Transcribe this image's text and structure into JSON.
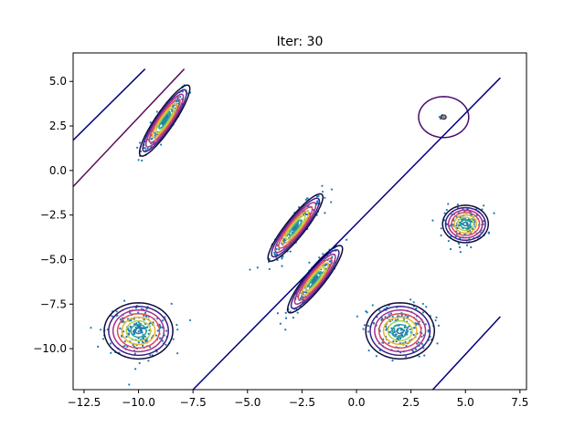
{
  "chart_data": {
    "type": "scatter",
    "title": "Iter: 30",
    "xlabel": "",
    "ylabel": "",
    "xlim": [
      -13.0,
      7.8
    ],
    "ylim": [
      -12.3,
      6.6
    ],
    "xticks": [
      -12.5,
      -10.0,
      -7.5,
      -5.0,
      -2.5,
      0.0,
      2.5,
      5.0,
      7.5
    ],
    "xtick_labels": [
      "−12.5",
      "−10.0",
      "−7.5",
      "−5.0",
      "−2.5",
      "0.0",
      "2.5",
      "5.0",
      "7.5"
    ],
    "yticks": [
      5.0,
      2.5,
      0.0,
      -2.5,
      -5.0,
      -7.5,
      -10.0
    ],
    "ytick_labels": [
      "5.0",
      "2.5",
      "0.0",
      "−2.5",
      "−5.0",
      "−7.5",
      "−10.0"
    ],
    "grid": false,
    "point_color": "#1f77b4",
    "clusters": [
      {
        "center": [
          -8.8,
          2.8
        ],
        "sx": 0.55,
        "sy": 0.95,
        "rho": 0.9,
        "n": 170
      },
      {
        "center": [
          -2.8,
          -3.2
        ],
        "sx": 0.6,
        "sy": 0.9,
        "rho": 0.9,
        "n": 170
      },
      {
        "center": [
          -1.9,
          -6.1
        ],
        "sx": 0.6,
        "sy": 0.9,
        "rho": 0.9,
        "n": 170
      },
      {
        "center": [
          -10.0,
          -9.0
        ],
        "sx": 0.75,
        "sy": 0.75,
        "rho": 0.0,
        "n": 200
      },
      {
        "center": [
          2.0,
          -9.0
        ],
        "sx": 0.75,
        "sy": 0.75,
        "rho": 0.0,
        "n": 200
      },
      {
        "center": [
          5.0,
          -3.0
        ],
        "sx": 0.5,
        "sy": 0.5,
        "rho": 0.0,
        "n": 150
      },
      {
        "center": [
          4.0,
          3.0
        ],
        "sx": 0.05,
        "sy": 0.05,
        "rho": 0.0,
        "n": 25
      }
    ],
    "components": [
      {
        "center": [
          -8.8,
          2.8
        ],
        "sx": 0.55,
        "sy": 0.95,
        "rho": 0.9,
        "levels": 8
      },
      {
        "center": [
          -2.8,
          -3.2
        ],
        "sx": 0.6,
        "sy": 0.9,
        "rho": 0.9,
        "levels": 8
      },
      {
        "center": [
          -1.9,
          -6.1
        ],
        "sx": 0.6,
        "sy": 0.9,
        "rho": 0.9,
        "levels": 8
      },
      {
        "center": [
          -10.0,
          -9.0
        ],
        "sx": 0.75,
        "sy": 0.75,
        "rho": 0.0,
        "levels": 8
      },
      {
        "center": [
          2.0,
          -9.0
        ],
        "sx": 0.75,
        "sy": 0.75,
        "rho": 0.0,
        "levels": 8
      },
      {
        "center": [
          5.0,
          -3.0
        ],
        "sx": 0.5,
        "sy": 0.5,
        "rho": 0.0,
        "levels": 8
      },
      {
        "center": [
          4.0,
          3.0
        ],
        "sx": 0.05,
        "sy": 0.05,
        "rho": 0.0,
        "levels": 4
      },
      {
        "center": [
          4.0,
          3.0
        ],
        "sx": 1.15,
        "sy": 1.15,
        "rho": 0.0,
        "levels": 1,
        "single_color": "#4a0c6b"
      }
    ],
    "degenerate_lines": [
      {
        "from": [
          -13.0,
          1.7
        ],
        "to": [
          -9.7,
          5.7
        ],
        "color": "#000080"
      },
      {
        "from": [
          -13.0,
          -0.9
        ],
        "to": [
          -7.9,
          5.7
        ],
        "color": "#5a0f5a"
      },
      {
        "from": [
          -7.5,
          -12.3
        ],
        "to": [
          6.6,
          5.2
        ],
        "color": "#000080"
      },
      {
        "from": [
          3.5,
          -12.3
        ],
        "to": [
          6.6,
          -8.2
        ],
        "color": "#000080"
      }
    ]
  }
}
